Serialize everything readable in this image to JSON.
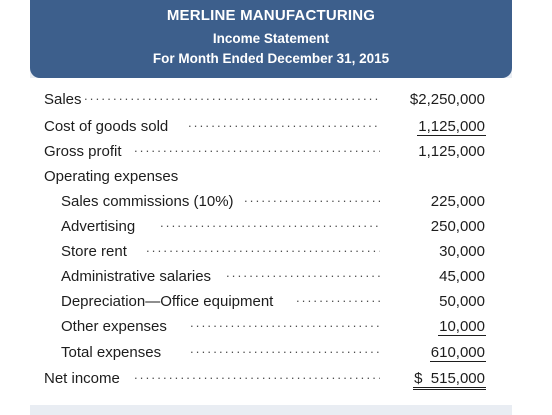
{
  "header": {
    "company": "MERLINE MANUFACTURING",
    "statement": "Income Statement",
    "period": "For Month Ended December 31, 2015"
  },
  "lines": {
    "sales": {
      "label": "Sales",
      "amount": "$2,250,000"
    },
    "cogs": {
      "label": "Cost of goods sold",
      "amount": "1,125,000"
    },
    "gross_profit": {
      "label": "Gross profit",
      "amount": "1,125,000"
    },
    "opex_heading": {
      "label": "Operating expenses"
    },
    "commissions": {
      "label": "Sales commissions (10%)",
      "amount": "225,000"
    },
    "advertising": {
      "label": "Advertising",
      "amount": "250,000"
    },
    "store_rent": {
      "label": "Store rent",
      "amount": "30,000"
    },
    "admin": {
      "label": "Administrative salaries",
      "amount": "45,000"
    },
    "depreciation": {
      "label": "Depreciation—Office equipment",
      "amount": "50,000"
    },
    "other": {
      "label": "Other expenses",
      "amount": "10,000"
    },
    "total": {
      "label": "Total expenses",
      "amount": "610,000"
    },
    "net_income": {
      "label": "Net income",
      "amount": "$  515,000"
    }
  },
  "colors": {
    "banner": "#3d5f8c",
    "panel": "#e9edf3"
  }
}
